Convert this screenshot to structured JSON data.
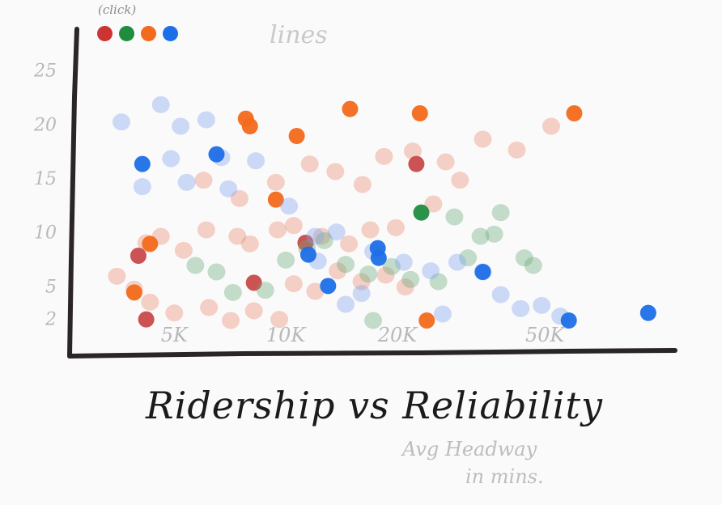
{
  "header": {
    "click_hint": "(click)",
    "lines_label": "lines"
  },
  "legend": [
    {
      "color": "#cc3333"
    },
    {
      "color": "#1f8c3f"
    },
    {
      "color": "#f26a1b"
    },
    {
      "color": "#1d6fe8"
    }
  ],
  "footer": {
    "title": "Ridership vs Reliability",
    "subtitle_line1": "Avg Headway",
    "subtitle_line2": "in mins."
  },
  "chart_data": {
    "type": "scatter",
    "title": "Ridership vs Reliability",
    "xlabel": "",
    "ylabel": "Avg Headway in mins.",
    "x_ticks": [
      "5K",
      "10K",
      "20K",
      "50K"
    ],
    "y_ticks": [
      "2",
      "5",
      "10",
      "15",
      "20",
      "25"
    ],
    "ylim": [
      0,
      27
    ],
    "x_scale": "log (ridership)",
    "grid": false,
    "legend_position": "top-left",
    "colors": {
      "red": "#e8896f",
      "red_strong": "#c94a4a",
      "green": "#6aa77a",
      "orange": "#f26a1b",
      "blue": "#7fa3f0",
      "blue_strong": "#1d6fe8"
    },
    "series": [
      {
        "color_key": "red",
        "points": [
          {
            "x": 4200,
            "y": 9.0
          },
          {
            "x": 4600,
            "y": 9.6
          },
          {
            "x": 5300,
            "y": 8.3
          },
          {
            "x": 6100,
            "y": 10.2
          },
          {
            "x": 7400,
            "y": 9.6
          },
          {
            "x": 8000,
            "y": 8.9
          },
          {
            "x": 9500,
            "y": 10.2
          },
          {
            "x": 10500,
            "y": 10.6
          },
          {
            "x": 12500,
            "y": 9.6
          },
          {
            "x": 14800,
            "y": 8.9
          },
          {
            "x": 16900,
            "y": 10.2
          },
          {
            "x": 19800,
            "y": 10.4
          },
          {
            "x": 3500,
            "y": 5.9
          },
          {
            "x": 3900,
            "y": 4.7
          },
          {
            "x": 4300,
            "y": 3.5
          },
          {
            "x": 5000,
            "y": 2.5
          },
          {
            "x": 6200,
            "y": 3.0
          },
          {
            "x": 7100,
            "y": 1.8
          },
          {
            "x": 8200,
            "y": 2.7
          },
          {
            "x": 9600,
            "y": 1.9
          },
          {
            "x": 10500,
            "y": 5.2
          },
          {
            "x": 12000,
            "y": 4.5
          },
          {
            "x": 13800,
            "y": 6.4
          },
          {
            "x": 16000,
            "y": 5.4
          },
          {
            "x": 18600,
            "y": 6.0
          },
          {
            "x": 21000,
            "y": 4.9
          },
          {
            "x": 6000,
            "y": 14.8
          },
          {
            "x": 7500,
            "y": 13.1
          },
          {
            "x": 9400,
            "y": 14.6
          },
          {
            "x": 11600,
            "y": 16.3
          },
          {
            "x": 13600,
            "y": 15.6
          },
          {
            "x": 16100,
            "y": 14.4
          },
          {
            "x": 18400,
            "y": 17.0
          },
          {
            "x": 22000,
            "y": 17.5
          },
          {
            "x": 27000,
            "y": 16.5
          },
          {
            "x": 34000,
            "y": 18.6
          },
          {
            "x": 42000,
            "y": 17.6
          },
          {
            "x": 52000,
            "y": 19.8
          },
          {
            "x": 29500,
            "y": 14.8
          },
          {
            "x": 25000,
            "y": 12.6
          }
        ]
      },
      {
        "color_key": "red_strong",
        "points": [
          {
            "x": 4200,
            "y": 1.9
          },
          {
            "x": 8200,
            "y": 5.3
          },
          {
            "x": 22500,
            "y": 16.3
          },
          {
            "x": 4000,
            "y": 7.8
          },
          {
            "x": 11300,
            "y": 9.0
          }
        ]
      },
      {
        "color_key": "green",
        "points": [
          {
            "x": 5700,
            "y": 6.9
          },
          {
            "x": 6500,
            "y": 6.3
          },
          {
            "x": 7200,
            "y": 4.4
          },
          {
            "x": 8800,
            "y": 4.6
          },
          {
            "x": 10000,
            "y": 7.4
          },
          {
            "x": 11400,
            "y": 8.5
          },
          {
            "x": 12700,
            "y": 9.2
          },
          {
            "x": 14500,
            "y": 7.0
          },
          {
            "x": 16700,
            "y": 6.1
          },
          {
            "x": 19300,
            "y": 6.8
          },
          {
            "x": 21700,
            "y": 5.6
          },
          {
            "x": 25800,
            "y": 5.4
          },
          {
            "x": 28500,
            "y": 11.4
          },
          {
            "x": 33500,
            "y": 9.6
          },
          {
            "x": 38000,
            "y": 11.8
          },
          {
            "x": 44000,
            "y": 7.6
          },
          {
            "x": 46500,
            "y": 6.9
          },
          {
            "x": 17200,
            "y": 1.8
          },
          {
            "x": 31000,
            "y": 7.6
          },
          {
            "x": 36500,
            "y": 9.8
          }
        ]
      },
      {
        "color_key": "orange",
        "points": [
          {
            "x": 7800,
            "y": 20.5
          },
          {
            "x": 10700,
            "y": 18.9
          },
          {
            "x": 14900,
            "y": 21.4
          },
          {
            "x": 23000,
            "y": 21.0
          },
          {
            "x": 60000,
            "y": 21.0
          },
          {
            "x": 9400,
            "y": 13.0
          },
          {
            "x": 24000,
            "y": 1.8
          },
          {
            "x": 4300,
            "y": 8.9
          },
          {
            "x": 3900,
            "y": 4.4
          },
          {
            "x": 8000,
            "y": 19.8
          }
        ]
      },
      {
        "color_key": "blue",
        "points": [
          {
            "x": 3600,
            "y": 20.2
          },
          {
            "x": 4600,
            "y": 21.8
          },
          {
            "x": 5200,
            "y": 19.8
          },
          {
            "x": 6100,
            "y": 20.4
          },
          {
            "x": 4900,
            "y": 16.8
          },
          {
            "x": 6700,
            "y": 16.9
          },
          {
            "x": 8300,
            "y": 16.6
          },
          {
            "x": 4100,
            "y": 14.2
          },
          {
            "x": 5400,
            "y": 14.6
          },
          {
            "x": 7000,
            "y": 14.0
          },
          {
            "x": 10200,
            "y": 12.4
          },
          {
            "x": 12000,
            "y": 9.6
          },
          {
            "x": 13700,
            "y": 10.0
          },
          {
            "x": 17200,
            "y": 8.2
          },
          {
            "x": 20800,
            "y": 7.2
          },
          {
            "x": 24600,
            "y": 6.4
          },
          {
            "x": 29000,
            "y": 7.2
          },
          {
            "x": 34000,
            "y": 6.3
          },
          {
            "x": 38000,
            "y": 4.2
          },
          {
            "x": 43000,
            "y": 2.9
          },
          {
            "x": 49000,
            "y": 3.2
          },
          {
            "x": 55000,
            "y": 2.2
          },
          {
            "x": 16000,
            "y": 4.3
          },
          {
            "x": 14500,
            "y": 3.3
          },
          {
            "x": 12200,
            "y": 7.3
          },
          {
            "x": 26500,
            "y": 2.4
          }
        ]
      },
      {
        "color_key": "blue_strong",
        "points": [
          {
            "x": 4100,
            "y": 16.3
          },
          {
            "x": 6500,
            "y": 17.2
          },
          {
            "x": 11500,
            "y": 7.9
          },
          {
            "x": 13000,
            "y": 5.0
          },
          {
            "x": 17700,
            "y": 8.5
          },
          {
            "x": 17800,
            "y": 7.6
          },
          {
            "x": 34000,
            "y": 6.3
          },
          {
            "x": 58000,
            "y": 1.8
          },
          {
            "x": 95000,
            "y": 2.5
          }
        ]
      },
      {
        "color_key": "green_strong",
        "points": [
          {
            "x": 23200,
            "y": 11.8
          }
        ]
      }
    ]
  }
}
